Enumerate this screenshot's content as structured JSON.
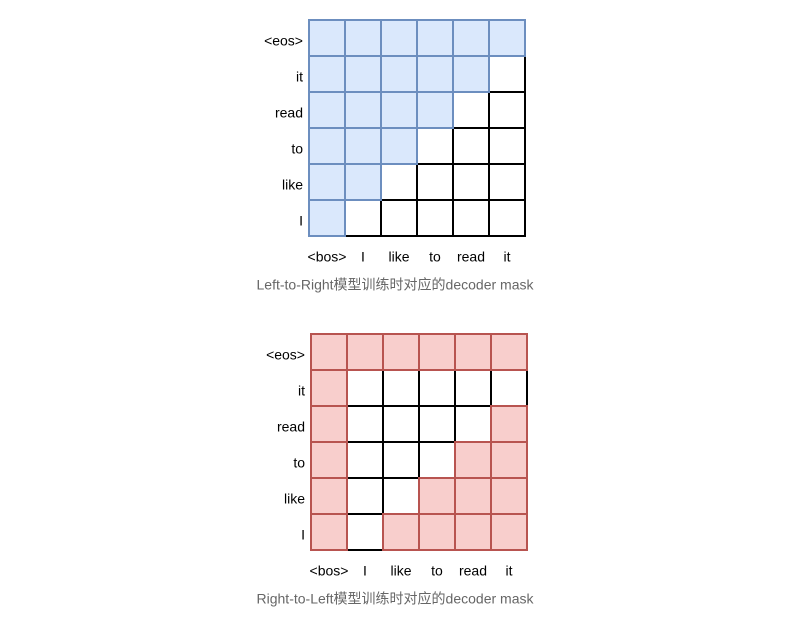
{
  "figures": [
    {
      "row_labels": [
        "<eos>",
        "it",
        "read",
        "to",
        "like",
        "I"
      ],
      "col_labels": [
        "<bos>",
        "I",
        "like",
        "to",
        "read",
        "it"
      ],
      "caption": "Left-to-Right模型训练时对应的decoder mask"
    },
    {
      "row_labels": [
        "<eos>",
        "it",
        "read",
        "to",
        "like",
        "I"
      ],
      "col_labels": [
        "<bos>",
        "I",
        "like",
        "to",
        "read",
        "it"
      ],
      "caption": "Right-to-Left模型训练时对应的decoder mask"
    }
  ]
}
